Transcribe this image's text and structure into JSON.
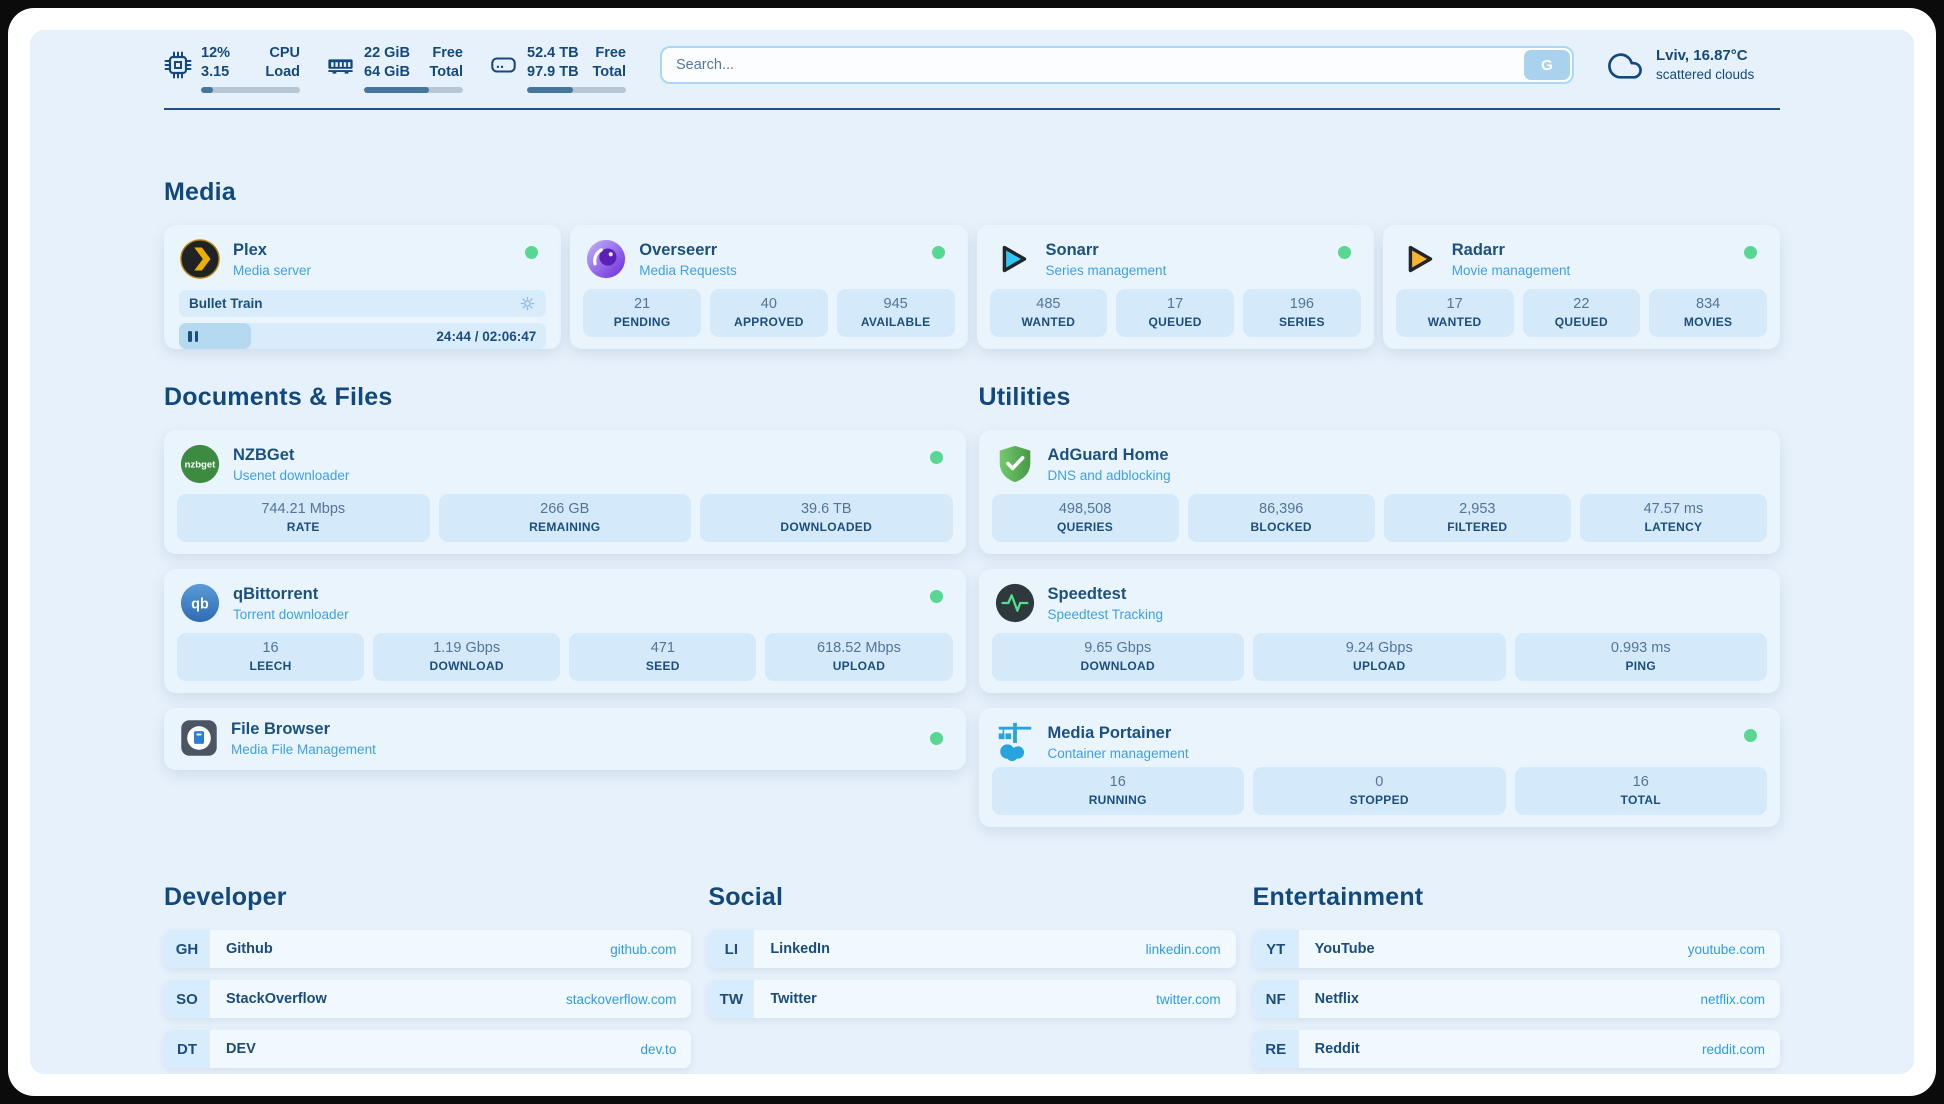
{
  "header": {
    "system": [
      {
        "icon": "cpu-icon",
        "values": [
          "12%",
          "3.15"
        ],
        "labels": [
          "CPU",
          "Load"
        ],
        "progress": 12
      },
      {
        "icon": "ram-icon",
        "values": [
          "22 GiB",
          "64 GiB"
        ],
        "labels": [
          "Free",
          "Total"
        ],
        "progress": 66
      },
      {
        "icon": "disk-icon",
        "values": [
          "52.4 TB",
          "97.9 TB"
        ],
        "labels": [
          "Free",
          "Total"
        ],
        "progress": 46
      }
    ],
    "search": {
      "placeholder": "Search...",
      "button_label": "G"
    },
    "weather": {
      "icon": "cloud-icon",
      "location_temp": "Lviv, 16.87°C",
      "condition": "scattered clouds"
    }
  },
  "sections": {
    "media": {
      "title": "Media",
      "apps": [
        {
          "icon": "plex-icon",
          "brand_color": "#ebaf00",
          "name": "Plex",
          "subtitle": "Media server",
          "online": true,
          "player": {
            "title": "Bullet Train",
            "time": "24:44 / 02:06:47",
            "progress_pct": 19.5
          }
        },
        {
          "icon": "overseerr-icon",
          "brand_color": "#7c3aed",
          "name": "Overseerr",
          "subtitle": "Media Requests",
          "online": true,
          "stats": [
            {
              "value": "21",
              "label": "PENDING"
            },
            {
              "value": "40",
              "label": "APPROVED"
            },
            {
              "value": "945",
              "label": "AVAILABLE"
            }
          ]
        },
        {
          "icon": "sonarr-icon",
          "brand_color": "#35c5f4",
          "name": "Sonarr",
          "subtitle": "Series management",
          "online": true,
          "stats": [
            {
              "value": "485",
              "label": "WANTED"
            },
            {
              "value": "17",
              "label": "QUEUED"
            },
            {
              "value": "196",
              "label": "SERIES"
            }
          ]
        },
        {
          "icon": "radarr-icon",
          "brand_color": "#f7b530",
          "name": "Radarr",
          "subtitle": "Movie management",
          "online": true,
          "stats": [
            {
              "value": "17",
              "label": "WANTED"
            },
            {
              "value": "22",
              "label": "QUEUED"
            },
            {
              "value": "834",
              "label": "MOVIES"
            }
          ]
        }
      ]
    },
    "documents": {
      "title": "Documents & Files",
      "apps": [
        {
          "icon": "nzbget-icon",
          "brand_color": "#3d8b40",
          "name": "NZBGet",
          "subtitle": "Usenet downloader",
          "online": true,
          "stats": [
            {
              "value": "744.21 Mbps",
              "label": "RATE"
            },
            {
              "value": "266 GB",
              "label": "REMAINING"
            },
            {
              "value": "39.6 TB",
              "label": "DOWNLOADED"
            }
          ]
        },
        {
          "icon": "qbittorrent-icon",
          "brand_color": "#3e7fd0",
          "name": "qBittorrent",
          "subtitle": "Torrent downloader",
          "online": true,
          "stats": [
            {
              "value": "16",
              "label": "LEECH"
            },
            {
              "value": "1.19 Gbps",
              "label": "DOWNLOAD"
            },
            {
              "value": "471",
              "label": "SEED"
            },
            {
              "value": "618.52 Mbps",
              "label": "UPLOAD"
            }
          ]
        },
        {
          "icon": "filebrowser-icon",
          "brand_color": "#2d7dd2",
          "name": "File Browser",
          "subtitle": "Media File Management",
          "online": true
        }
      ]
    },
    "utilities": {
      "title": "Utilities",
      "apps": [
        {
          "icon": "adguard-icon",
          "brand_color": "#5cb85c",
          "name": "AdGuard Home",
          "subtitle": "DNS and adblocking",
          "online": false,
          "stats": [
            {
              "value": "498,508",
              "label": "QUERIES"
            },
            {
              "value": "86,396",
              "label": "BLOCKED"
            },
            {
              "value": "2,953",
              "label": "FILTERED"
            },
            {
              "value": "47.57 ms",
              "label": "LATENCY"
            }
          ]
        },
        {
          "icon": "speedtest-icon",
          "brand_color": "#2f383c",
          "name": "Speedtest",
          "subtitle": "Speedtest Tracking",
          "online": false,
          "stats": [
            {
              "value": "9.65 Gbps",
              "label": "DOWNLOAD"
            },
            {
              "value": "9.24 Gbps",
              "label": "UPLOAD"
            },
            {
              "value": "0.993 ms",
              "label": "PING"
            }
          ]
        },
        {
          "icon": "portainer-icon",
          "brand_color": "#29a3dc",
          "name": "Media Portainer",
          "subtitle": "Container management",
          "online": true,
          "stats": [
            {
              "value": "16",
              "label": "RUNNING"
            },
            {
              "value": "0",
              "label": "STOPPED"
            },
            {
              "value": "16",
              "label": "TOTAL"
            }
          ]
        }
      ]
    }
  },
  "links": {
    "developer": {
      "title": "Developer",
      "items": [
        {
          "abbr": "GH",
          "name": "Github",
          "url": "github.com"
        },
        {
          "abbr": "SO",
          "name": "StackOverflow",
          "url": "stackoverflow.com"
        },
        {
          "abbr": "DT",
          "name": "DEV",
          "url": "dev.to"
        }
      ]
    },
    "social": {
      "title": "Social",
      "items": [
        {
          "abbr": "LI",
          "name": "LinkedIn",
          "url": "linkedin.com"
        },
        {
          "abbr": "TW",
          "name": "Twitter",
          "url": "twitter.com"
        }
      ]
    },
    "entertainment": {
      "title": "Entertainment",
      "items": [
        {
          "abbr": "YT",
          "name": "YouTube",
          "url": "youtube.com"
        },
        {
          "abbr": "NF",
          "name": "Netflix",
          "url": "netflix.com"
        },
        {
          "abbr": "RE",
          "name": "Reddit",
          "url": "reddit.com"
        }
      ]
    }
  },
  "colors": {
    "page_bg": "#e7f1fb",
    "card_bg": "#eaf4fd",
    "stat_bg": "#d4e9fa",
    "navy": "#1b4e7e",
    "subtitle_blue": "#3da0e8",
    "link_blue": "#2f9ce8",
    "online_green": "#58d792",
    "bar_fill": "#46759e"
  }
}
